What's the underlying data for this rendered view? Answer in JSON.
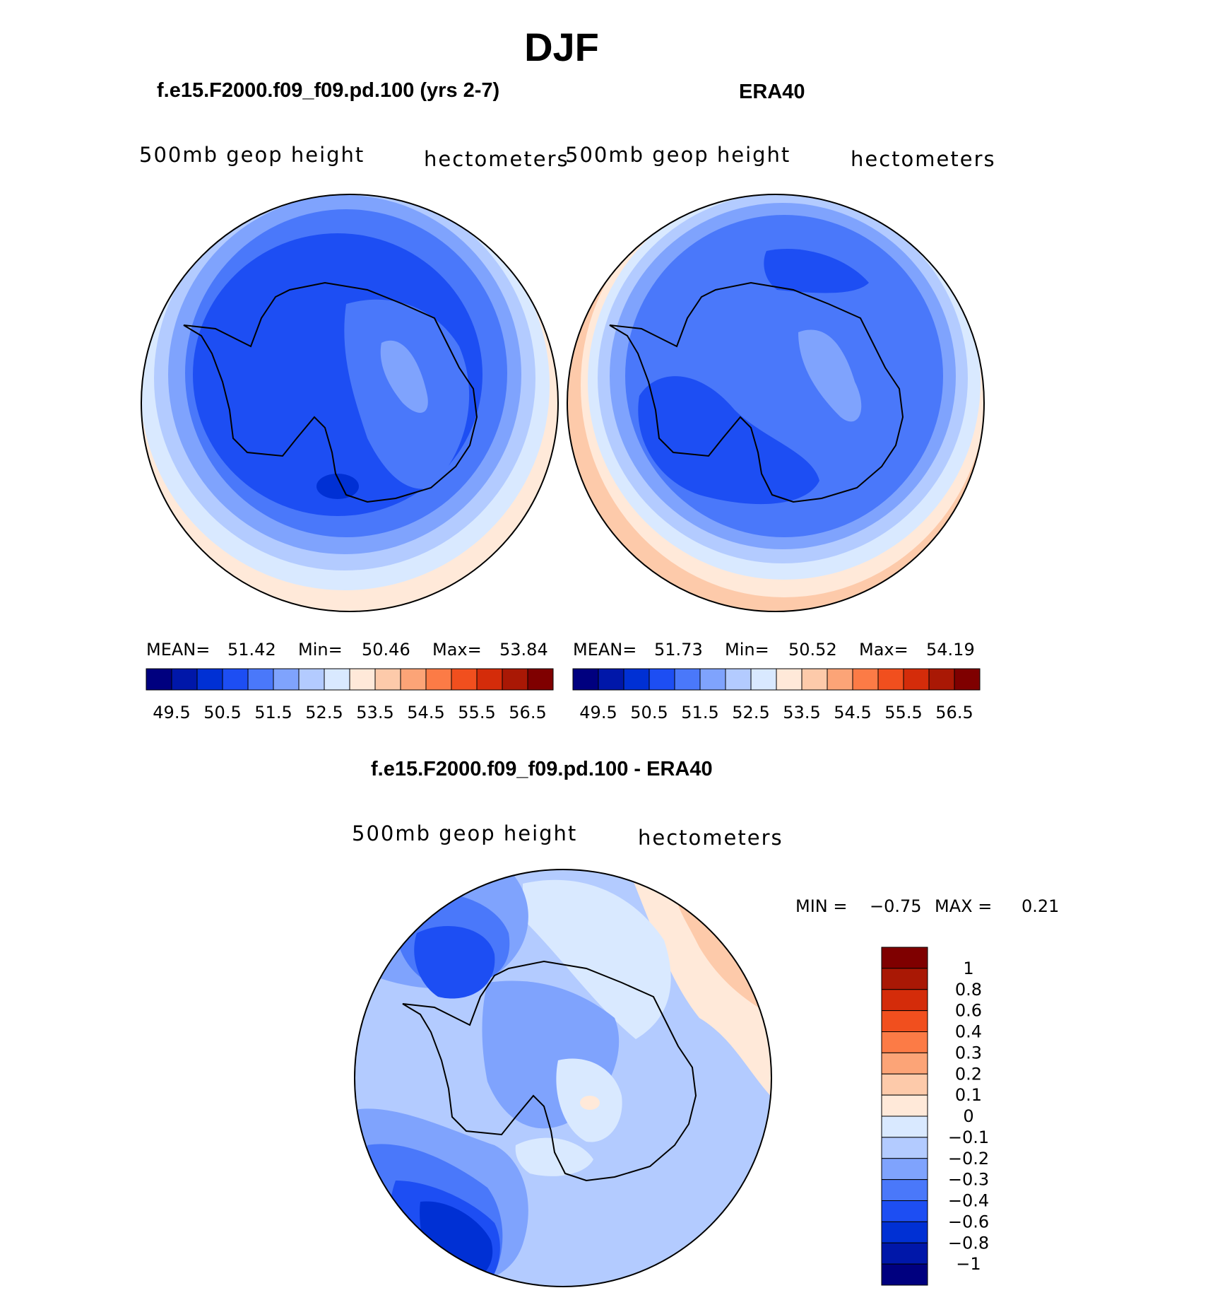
{
  "title": "DJF",
  "panels": [
    {
      "id": "model",
      "header": "f.e15.F2000.f09_f09.pd.100 (yrs 2-7)",
      "var_label": "500mb  geop  height",
      "units": "hectometers",
      "stats": {
        "mean_label": "MEAN=",
        "mean": "51.42",
        "min_label": "Min=",
        "min": "50.46",
        "max_label": "Max=",
        "max": "53.84"
      }
    },
    {
      "id": "obs",
      "header": "ERA40",
      "var_label": "500mb  geop  height",
      "units": "hectometers",
      "stats": {
        "mean_label": "MEAN=",
        "mean": "51.73",
        "min_label": "Min=",
        "min": "50.52",
        "max_label": "Max=",
        "max": "54.19"
      }
    }
  ],
  "diff_panel": {
    "header": "f.e15.F2000.f09_f09.pd.100 - ERA40",
    "var_label": "500mb  geop  height",
    "units": "hectometers",
    "minmax": {
      "min_label": "MIN =",
      "min": "−0.75",
      "max_label": "MAX =",
      "max": "0.21"
    }
  },
  "chart_data": [
    {
      "type": "heatmap",
      "projection": "south polar stereographic",
      "title": "f.e15.F2000.f09_f09.pd.100 (yrs 2-7)",
      "subtitle": "500mb geop height",
      "units": "hectometers",
      "mean": 51.42,
      "min": 50.46,
      "max": 53.84,
      "colorbar": {
        "orientation": "horizontal",
        "levels": [
          49.5,
          50.5,
          51.5,
          52.5,
          53.5,
          54.5,
          55.5,
          56.5
        ],
        "tick_labels": [
          "49.5",
          "50.5",
          "51.5",
          "52.5",
          "53.5",
          "54.5",
          "55.5",
          "56.5"
        ],
        "colors": [
          "#00007f",
          "#0017a9",
          "#0030d4",
          "#1d4ef3",
          "#4a78fa",
          "#7fa3fd",
          "#b3cbff",
          "#d9e9ff",
          "#ffe9d9",
          "#fdcaaa",
          "#fca477",
          "#fc7b46",
          "#f14f1e",
          "#d42c0a",
          "#a91805",
          "#7f0000"
        ]
      }
    },
    {
      "type": "heatmap",
      "projection": "south polar stereographic",
      "title": "ERA40",
      "subtitle": "500mb geop height",
      "units": "hectometers",
      "mean": 51.73,
      "min": 50.52,
      "max": 54.19,
      "colorbar": {
        "orientation": "horizontal",
        "levels": [
          49.5,
          50.5,
          51.5,
          52.5,
          53.5,
          54.5,
          55.5,
          56.5
        ],
        "tick_labels": [
          "49.5",
          "50.5",
          "51.5",
          "52.5",
          "53.5",
          "54.5",
          "55.5",
          "56.5"
        ],
        "colors": [
          "#00007f",
          "#0017a9",
          "#0030d4",
          "#1d4ef3",
          "#4a78fa",
          "#7fa3fd",
          "#b3cbff",
          "#d9e9ff",
          "#ffe9d9",
          "#fdcaaa",
          "#fca477",
          "#fc7b46",
          "#f14f1e",
          "#d42c0a",
          "#a91805",
          "#7f0000"
        ]
      }
    },
    {
      "type": "heatmap",
      "projection": "south polar stereographic",
      "title": "f.e15.F2000.f09_f09.pd.100 - ERA40",
      "subtitle": "500mb geop height",
      "units": "hectometers",
      "min": -0.75,
      "max": 0.21,
      "colorbar": {
        "orientation": "vertical",
        "levels": [
          1,
          0.8,
          0.6,
          0.4,
          0.3,
          0.2,
          0.1,
          0,
          -0.1,
          -0.2,
          -0.3,
          -0.4,
          -0.6,
          -0.8,
          -1
        ],
        "tick_labels": [
          "1",
          "0.8",
          "0.6",
          "0.4",
          "0.3",
          "0.2",
          "0.1",
          "0",
          "−0.1",
          "−0.2",
          "−0.3",
          "−0.4",
          "−0.6",
          "−0.8",
          "−1"
        ],
        "colors": [
          "#7f0000",
          "#a91805",
          "#d42c0a",
          "#f14f1e",
          "#fc7b46",
          "#fca477",
          "#fdcaaa",
          "#ffe9d9",
          "#d9e9ff",
          "#b3cbff",
          "#7fa3fd",
          "#4a78fa",
          "#1d4ef3",
          "#0030d4",
          "#0017a9",
          "#00007f"
        ]
      }
    }
  ]
}
